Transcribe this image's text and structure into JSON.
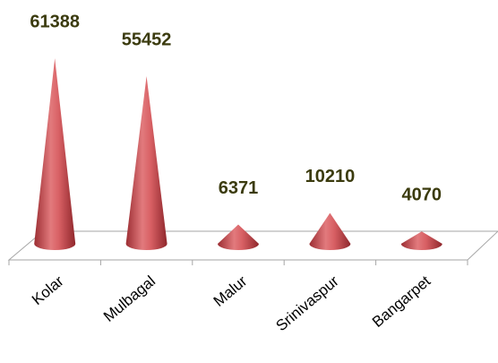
{
  "chart_data": {
    "type": "cone",
    "categories": [
      "Kolar",
      "Mulbagal",
      "Malur",
      "Srinivaspur",
      "Bangarpet"
    ],
    "values": [
      61388,
      55452,
      6371,
      10210,
      4070
    ],
    "color": "#c0504d"
  }
}
